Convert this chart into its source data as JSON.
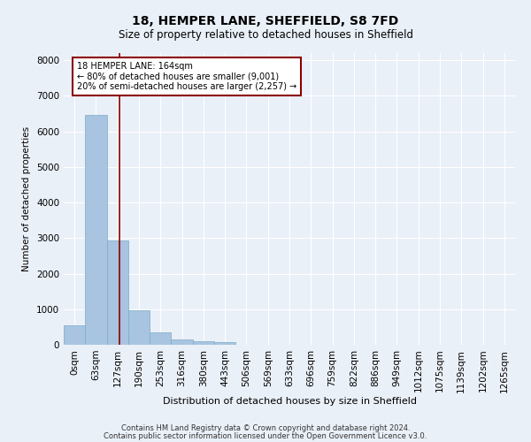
{
  "title": "18, HEMPER LANE, SHEFFIELD, S8 7FD",
  "subtitle": "Size of property relative to detached houses in Sheffield",
  "xlabel": "Distribution of detached houses by size in Sheffield",
  "ylabel": "Number of detached properties",
  "footer_line1": "Contains HM Land Registry data © Crown copyright and database right 2024.",
  "footer_line2": "Contains public sector information licensed under the Open Government Licence v3.0.",
  "bar_labels": [
    "0sqm",
    "63sqm",
    "127sqm",
    "190sqm",
    "253sqm",
    "316sqm",
    "380sqm",
    "443sqm",
    "506sqm",
    "569sqm",
    "633sqm",
    "696sqm",
    "759sqm",
    "822sqm",
    "886sqm",
    "949sqm",
    "1012sqm",
    "1075sqm",
    "1139sqm",
    "1202sqm",
    "1265sqm"
  ],
  "bar_values": [
    550,
    6450,
    2920,
    970,
    340,
    155,
    110,
    65,
    0,
    0,
    0,
    0,
    0,
    0,
    0,
    0,
    0,
    0,
    0,
    0,
    0
  ],
  "bar_color": "#a8c4e0",
  "bar_edge_color": "#7aaac8",
  "bg_color": "#eaf0f8",
  "grid_color": "#ffffff",
  "annotation_text": "18 HEMPER LANE: 164sqm\n← 80% of detached houses are smaller (9,001)\n20% of semi-detached houses are larger (2,257) →",
  "annotation_box_color": "#8b0000",
  "vline_x": 2.6,
  "ylim": [
    0,
    8200
  ],
  "yticks": [
    0,
    1000,
    2000,
    3000,
    4000,
    5000,
    6000,
    7000,
    8000
  ]
}
